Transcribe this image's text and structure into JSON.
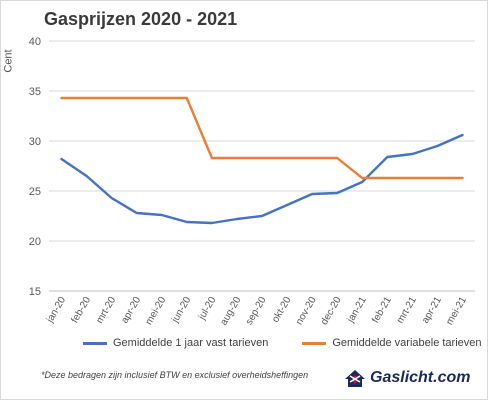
{
  "header": {
    "title": "Gasprijzen 2020 - 2021"
  },
  "chart_data": {
    "type": "line",
    "title": "Gasprijzen 2020 - 2021",
    "xlabel": "",
    "ylabel": "Cent",
    "ylim": [
      15,
      40
    ],
    "yticks": [
      15,
      20,
      25,
      30,
      35,
      40
    ],
    "grid": true,
    "legend_position": "bottom",
    "categories": [
      "jan-20",
      "feb-20",
      "mrt-20",
      "apr-20",
      "mei-20",
      "jun-20",
      "jul-20",
      "aug-20",
      "sep-20",
      "okt-20",
      "nov-20",
      "dec-20",
      "jan-21",
      "feb-21",
      "mrt-21",
      "apr-21",
      "mei-21"
    ],
    "series": [
      {
        "name": "Gemiddelde 1 jaar vast tarieven",
        "color": "#4472c4",
        "values": [
          28.2,
          26.5,
          24.3,
          22.8,
          22.6,
          21.9,
          21.8,
          22.2,
          22.5,
          23.6,
          24.7,
          24.8,
          25.9,
          28.4,
          28.7,
          29.5,
          30.6
        ]
      },
      {
        "name": "Gemiddelde variabele tarieven",
        "color": "#ed7d31",
        "values": [
          34.3,
          34.3,
          34.3,
          34.3,
          34.3,
          34.3,
          28.3,
          28.3,
          28.3,
          28.3,
          28.3,
          28.3,
          26.3,
          26.3,
          26.3,
          26.3,
          26.3
        ]
      }
    ]
  },
  "footnote": "*Deze bedragen zijn inclusief BTW en exclusief overheidsheffingen",
  "logo": {
    "text": "Gaslicht.com",
    "icon": "house-flame-logo-icon",
    "colors": {
      "navy": "#1a2a5c",
      "red": "#c8102e"
    }
  }
}
